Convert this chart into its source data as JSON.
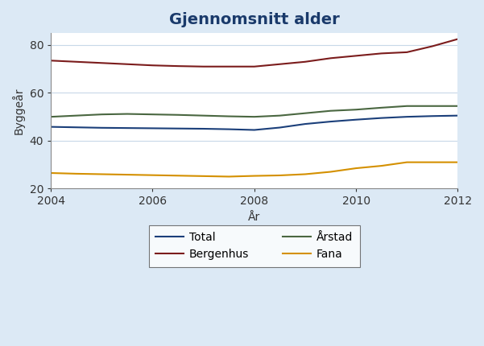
{
  "title": "Gjennomsnitt alder",
  "xlabel": "År",
  "ylabel": "Byggeår",
  "years": [
    2004,
    2004.5,
    2005,
    2005.5,
    2006,
    2006.5,
    2007,
    2007.5,
    2008,
    2008.5,
    2009,
    2009.5,
    2010,
    2010.5,
    2011,
    2011.5,
    2012
  ],
  "series": {
    "Total": {
      "values": [
        45.8,
        45.6,
        45.4,
        45.3,
        45.2,
        45.1,
        45.0,
        44.8,
        44.5,
        45.5,
        47.0,
        48.0,
        48.8,
        49.5,
        50.0,
        50.3,
        50.5
      ],
      "color": "#1B3F7A",
      "linewidth": 1.5
    },
    "Bergenhus": {
      "values": [
        73.5,
        73.0,
        72.5,
        72.0,
        71.5,
        71.2,
        71.0,
        71.0,
        71.0,
        72.0,
        73.0,
        74.5,
        75.5,
        76.5,
        77.0,
        79.5,
        82.5
      ],
      "color": "#7B1C1C",
      "linewidth": 1.5
    },
    "Arstad": {
      "values": [
        50.0,
        50.5,
        51.0,
        51.2,
        51.0,
        50.8,
        50.5,
        50.2,
        50.0,
        50.5,
        51.5,
        52.5,
        53.0,
        53.8,
        54.5,
        54.5,
        54.5
      ],
      "color": "#4A6741",
      "linewidth": 1.5
    },
    "Fana": {
      "values": [
        26.5,
        26.2,
        26.0,
        25.8,
        25.6,
        25.4,
        25.2,
        25.0,
        25.3,
        25.5,
        26.0,
        27.0,
        28.5,
        29.5,
        31.0,
        31.0,
        31.0
      ],
      "color": "#D49000",
      "linewidth": 1.5
    }
  },
  "xlim": [
    2004,
    2012
  ],
  "ylim": [
    20,
    85
  ],
  "yticks": [
    20,
    40,
    60,
    80
  ],
  "xticks": [
    2004,
    2006,
    2008,
    2010,
    2012
  ],
  "background_color": "#DCE9F5",
  "plot_background_color": "#FFFFFF",
  "title_fontsize": 14,
  "label_fontsize": 10,
  "tick_fontsize": 10
}
